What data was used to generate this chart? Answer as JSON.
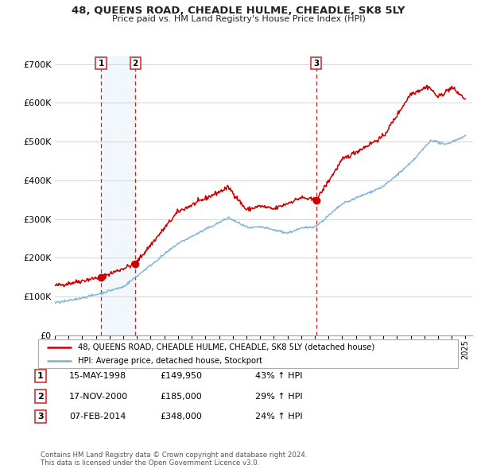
{
  "title": "48, QUEENS ROAD, CHEADLE HULME, CHEADLE, SK8 5LY",
  "subtitle": "Price paid vs. HM Land Registry's House Price Index (HPI)",
  "ylim": [
    0,
    720000
  ],
  "yticks": [
    0,
    100000,
    200000,
    300000,
    400000,
    500000,
    600000,
    700000
  ],
  "ytick_labels": [
    "£0",
    "£100K",
    "£200K",
    "£300K",
    "£400K",
    "£500K",
    "£600K",
    "£700K"
  ],
  "sale_dates": [
    1998.37,
    2000.88,
    2014.09
  ],
  "sale_prices": [
    149950,
    185000,
    348000
  ],
  "sale_labels": [
    "1",
    "2",
    "3"
  ],
  "red_line_color": "#cc0000",
  "blue_line_color": "#7ab0d4",
  "sale_marker_color": "#cc0000",
  "vline_color": "#cc2222",
  "shade_color": "#ddeeff",
  "legend_line1": "48, QUEENS ROAD, CHEADLE HULME, CHEADLE, SK8 5LY (detached house)",
  "legend_line2": "HPI: Average price, detached house, Stockport",
  "table_rows": [
    [
      "1",
      "15-MAY-1998",
      "£149,950",
      "43% ↑ HPI"
    ],
    [
      "2",
      "17-NOV-2000",
      "£185,000",
      "29% ↑ HPI"
    ],
    [
      "3",
      "07-FEB-2014",
      "£348,000",
      "24% ↑ HPI"
    ]
  ],
  "footnote": "Contains HM Land Registry data © Crown copyright and database right 2024.\nThis data is licensed under the Open Government Licence v3.0.",
  "background_color": "#ffffff",
  "grid_color": "#cccccc"
}
